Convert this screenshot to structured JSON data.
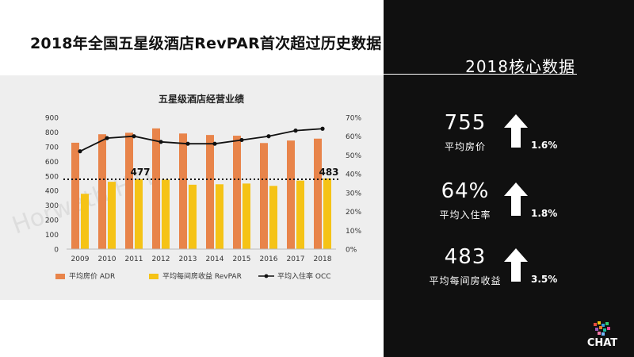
{
  "page": {
    "headline": "2018年全国五星级酒店RevPAR首次超过历史数据"
  },
  "chart_data": {
    "type": "bar",
    "title": "五星级酒店经营业绩",
    "categories": [
      "2009",
      "2010",
      "2011",
      "2012",
      "2013",
      "2014",
      "2015",
      "2016",
      "2017",
      "2018"
    ],
    "series": [
      {
        "name": "平均房价 ADR",
        "type": "bar",
        "axis": "left",
        "color": "#e8844a",
        "values": [
          727,
          785,
          795,
          825,
          790,
          780,
          775,
          725,
          742,
          755
        ]
      },
      {
        "name": "平均每间房收益 RevPAR",
        "type": "bar",
        "axis": "left",
        "color": "#f5c316",
        "values": [
          378,
          460,
          477,
          475,
          440,
          443,
          448,
          432,
          468,
          483
        ]
      },
      {
        "name": "平均入住率 OCC",
        "type": "line",
        "axis": "right",
        "color": "#111111",
        "values": [
          52,
          59,
          60,
          57,
          56,
          56,
          58,
          60,
          63,
          64
        ]
      }
    ],
    "ylim_left": [
      0,
      900
    ],
    "yticks_left": [
      "0",
      "100",
      "200",
      "300",
      "400",
      "500",
      "600",
      "700",
      "800",
      "900"
    ],
    "ylim_right": [
      0,
      70
    ],
    "yticks_right": [
      "0%",
      "10%",
      "20%",
      "30%",
      "40%",
      "50%",
      "60%",
      "70%"
    ],
    "reference_line": {
      "value": 477,
      "style": "dotted",
      "color": "#111111"
    },
    "annotations": [
      {
        "text": "477",
        "category": "2011"
      },
      {
        "text": "483",
        "category": "2018"
      }
    ],
    "watermark": "Horwath HTL",
    "legend_position": "bottom"
  },
  "kpis": {
    "header": "2018核心数据",
    "items": [
      {
        "value": "755",
        "label": "平均房价",
        "change": "1.6%",
        "direction": "up",
        "icon": "up-arrow-icon"
      },
      {
        "value": "64%",
        "label": "平均入住率",
        "change": "1.8%",
        "direction": "up",
        "icon": "up-arrow-icon"
      },
      {
        "value": "483",
        "label": "平均每间房收益",
        "change": "3.5%",
        "direction": "up",
        "icon": "up-arrow-icon"
      }
    ]
  },
  "logo": {
    "text": "CHAT"
  }
}
